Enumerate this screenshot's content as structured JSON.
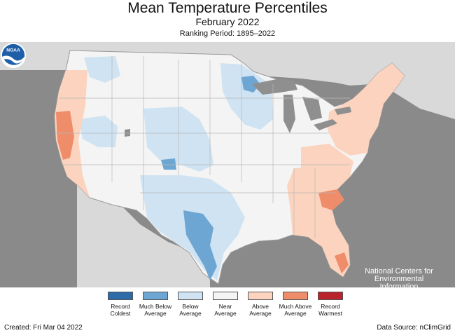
{
  "header": {
    "title": "Mean Temperature Percentiles",
    "subtitle": "February 2022",
    "period": "Ranking Period: 1895–2022"
  },
  "branding": {
    "logo_text": "NOAA",
    "agency": "National Centers for Environmental Information"
  },
  "legend": [
    {
      "label": "Record Coldest",
      "color": "#2c6aa8"
    },
    {
      "label": "Much Below Average",
      "color": "#6ea6d3"
    },
    {
      "label": "Below Average",
      "color": "#cfe3f2"
    },
    {
      "label": "Near Average",
      "color": "#f4f4f4"
    },
    {
      "label": "Above Average",
      "color": "#fbd3be"
    },
    {
      "label": "Much Above Average",
      "color": "#ef8c69"
    },
    {
      "label": "Record Warmest",
      "color": "#b8232c"
    }
  ],
  "footer": {
    "created": "Created: Fri Mar 04 2022",
    "source": "Data Source: nClimGrid"
  },
  "colors": {
    "background_gray": "#8a8a8a",
    "land_gray": "#d9d9d9",
    "water_gray": "#8a8a8a",
    "lake_gray": "#8f8f8f",
    "state_border": "#9a9a9a"
  }
}
